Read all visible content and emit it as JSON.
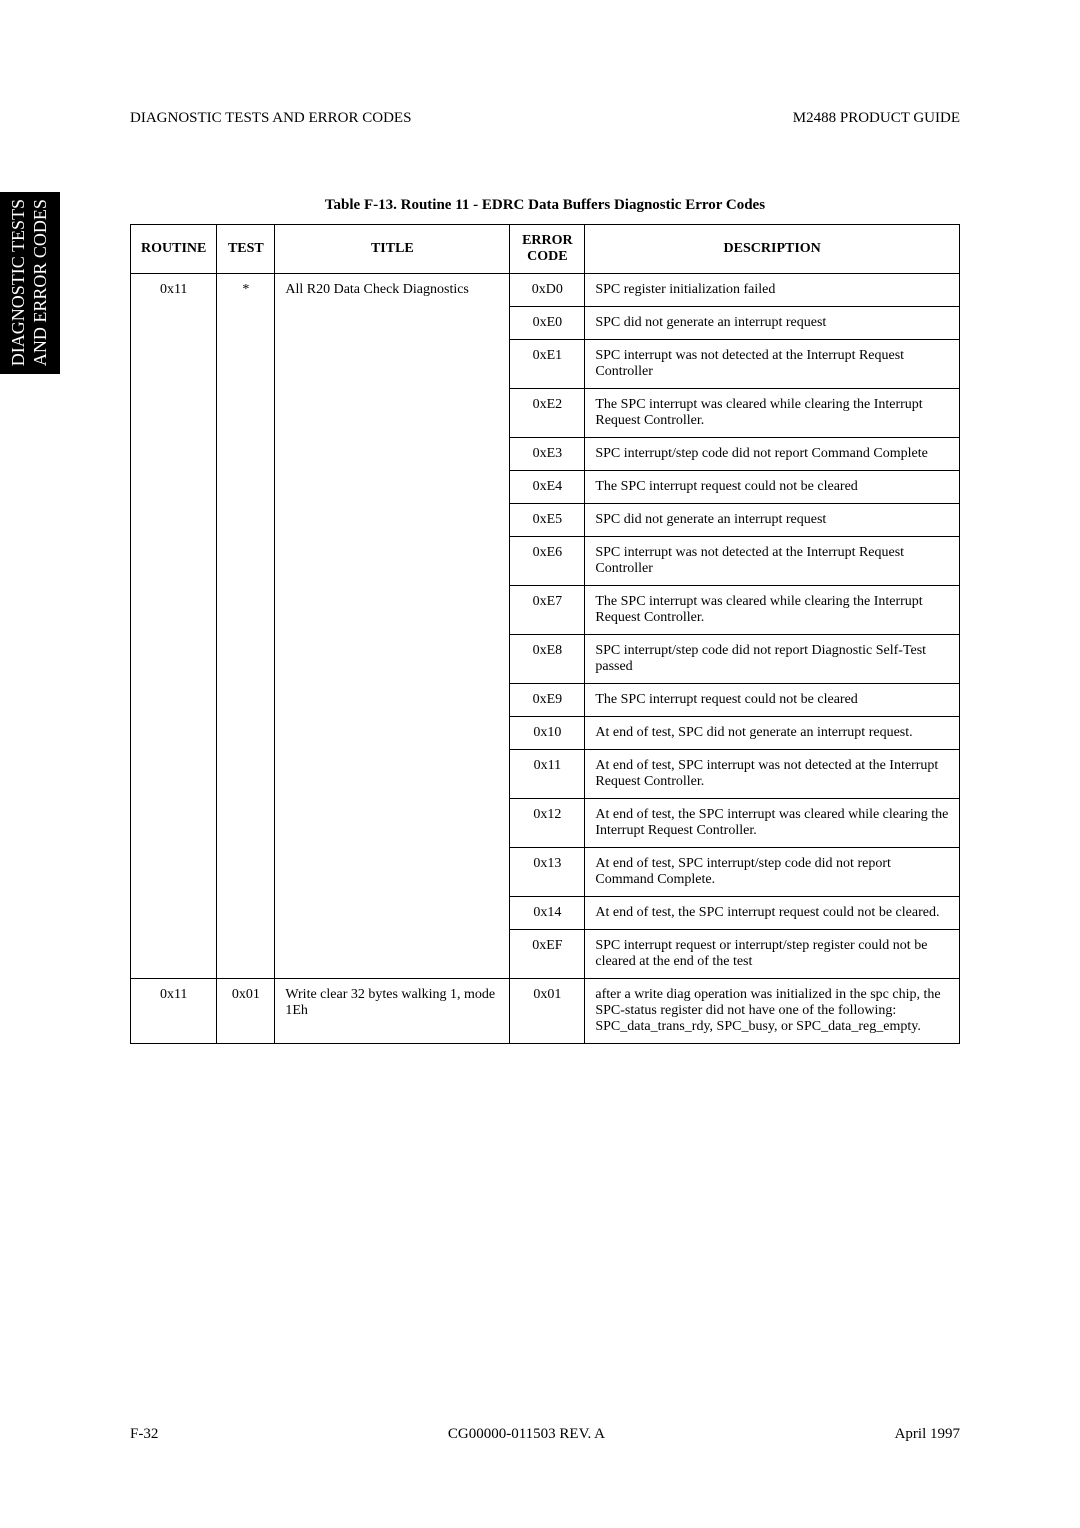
{
  "sideTab": {
    "line1": "DIAGNOSTIC TESTS",
    "line2": "AND ERROR CODES"
  },
  "header": {
    "left": "DIAGNOSTIC TESTS AND ERROR CODES",
    "right": "M2488 PRODUCT GUIDE"
  },
  "caption": "Table F-13.   Routine 11 - EDRC Data Buffers Diagnostic Error Codes",
  "columns": {
    "routine": "ROUTINE",
    "test": "TEST",
    "title": "TITLE",
    "error": "ERROR CODE",
    "desc": "DESCRIPTION"
  },
  "group1": {
    "routine": "0x11",
    "test": "*",
    "title": "All R20 Data Check Diagnostics",
    "rows": [
      {
        "code": "0xD0",
        "desc": "SPC register initialization failed"
      },
      {
        "code": "0xE0",
        "desc": "SPC did not generate an interrupt request"
      },
      {
        "code": "0xE1",
        "desc": "SPC interrupt was not detected at the Interrupt Request Controller"
      },
      {
        "code": "0xE2",
        "desc": "The SPC interrupt was cleared while clearing the Interrupt Request Controller."
      },
      {
        "code": "0xE3",
        "desc": "SPC interrupt/step code did not report Command Complete"
      },
      {
        "code": "0xE4",
        "desc": "The SPC interrupt request could not be cleared"
      },
      {
        "code": "0xE5",
        "desc": "SPC did not generate an interrupt request"
      },
      {
        "code": "0xE6",
        "desc": "SPC interrupt was not detected at the Interrupt Request Controller"
      },
      {
        "code": "0xE7",
        "desc": "The SPC interrupt was cleared while clearing the Interrupt Request Controller."
      },
      {
        "code": "0xE8",
        "desc": "SPC interrupt/step code did not report Diagnostic Self-Test passed"
      },
      {
        "code": "0xE9",
        "desc": "The SPC interrupt request could not be cleared"
      },
      {
        "code": "0x10",
        "desc": "At end of test, SPC did not generate an interrupt request."
      },
      {
        "code": "0x11",
        "desc": "At end of test, SPC interrupt was not detected at the Interrupt Request Controller."
      },
      {
        "code": "0x12",
        "desc": "At end of test, the SPC interrupt was cleared while clearing the Interrupt Request Controller."
      },
      {
        "code": "0x13",
        "desc": "At end of test, SPC interrupt/step code did not report Command Complete."
      },
      {
        "code": "0x14",
        "desc": "At end of test, the SPC interrupt request could not be cleared."
      },
      {
        "code": "0xEF",
        "desc": "SPC interrupt request or interrupt/step register could not be cleared at the end of the test"
      }
    ]
  },
  "group2": {
    "routine": "0x11",
    "test": "0x01",
    "title": "Write clear 32 bytes walking 1, mode 1Eh",
    "code": "0x01",
    "desc": "after a write diag operation was initialized in the spc chip, the SPC-status register did not have one of the following: SPC_data_trans_rdy, SPC_busy, or SPC_data_reg_empty."
  },
  "footer": {
    "left": "F-32",
    "center": "CG00000-011503 REV. A",
    "right": "April 1997"
  }
}
